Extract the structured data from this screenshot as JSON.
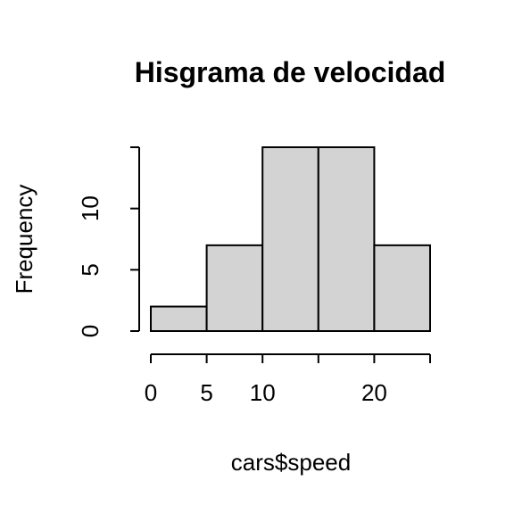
{
  "chart_data": {
    "type": "bar",
    "title": "Hisgrama de velocidad",
    "xlabel": "cars$speed",
    "ylabel": "Frequency",
    "histogram": true,
    "bins": [
      {
        "from": 0,
        "to": 5,
        "count": 2
      },
      {
        "from": 5,
        "to": 10,
        "count": 7
      },
      {
        "from": 10,
        "to": 15,
        "count": 15
      },
      {
        "from": 15,
        "to": 20,
        "count": 15
      },
      {
        "from": 20,
        "to": 25,
        "count": 7
      }
    ],
    "xlim": [
      0,
      25
    ],
    "ylim": [
      0,
      15
    ],
    "x_ticks": [
      0,
      5,
      10,
      15,
      20,
      25
    ],
    "x_tick_labels": [
      "0",
      "5",
      "10",
      "",
      "20",
      ""
    ],
    "y_ticks": [
      0,
      5,
      10,
      15
    ],
    "y_tick_labels": [
      "0",
      "5",
      "10",
      ""
    ],
    "grid": false,
    "bar_color": "#d3d3d3",
    "edge_color": "#000000"
  }
}
